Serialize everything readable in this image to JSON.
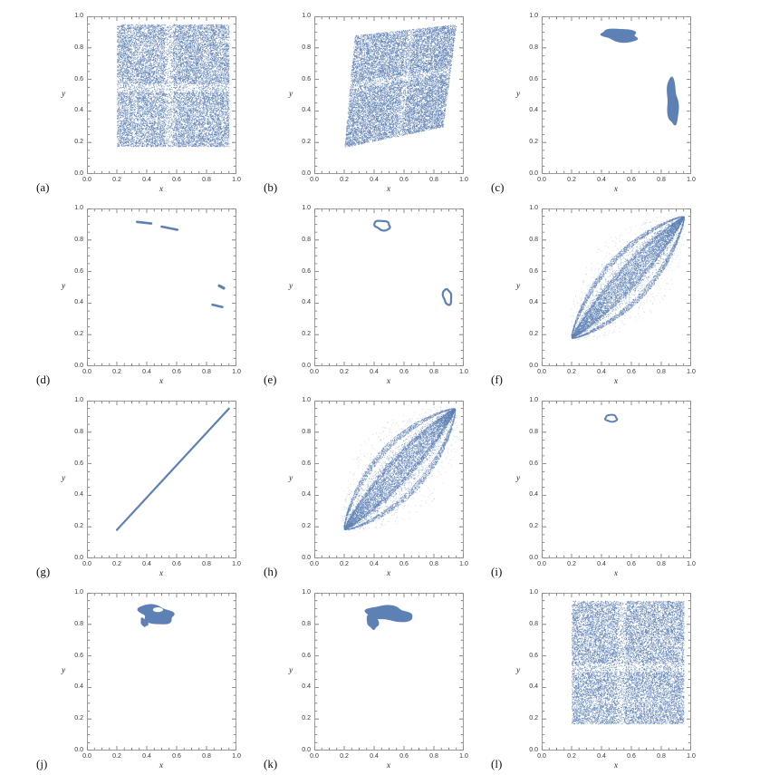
{
  "figure": {
    "axis": {
      "tick_values": [
        0,
        0.2,
        0.4,
        0.6,
        0.8,
        1.0
      ],
      "tick_labels": [
        "0.0",
        "0.2",
        "0.4",
        "0.6",
        "0.8",
        "1.0"
      ],
      "xlabel": "x",
      "ylabel": "y",
      "xlim": [
        0,
        1
      ],
      "ylim": [
        0,
        1
      ]
    },
    "point_color": "#5e81b5",
    "frame_color": "#9b9b9b",
    "tick_color": "#6e6e6e"
  },
  "chart_data": [
    {
      "label": "(a)",
      "type": "scatter",
      "shapes": [
        {
          "kind": "uniform_rect",
          "x": [
            0.2,
            0.95
          ],
          "y": [
            0.175,
            0.95
          ],
          "n": 16000,
          "bands_x": [
            [
              0.52,
              0.575,
              0.45
            ],
            [
              0.3,
              0.33,
              0.75
            ]
          ],
          "bands_y": [
            [
              0.52,
              0.575,
              0.45
            ],
            [
              0.33,
              0.36,
              0.8
            ]
          ]
        }
      ]
    },
    {
      "label": "(b)",
      "type": "scatter",
      "shapes": [
        {
          "kind": "quad",
          "corners": [
            [
              0.2,
              0.17
            ],
            [
              0.86,
              0.3
            ],
            [
              0.95,
              0.95
            ],
            [
              0.27,
              0.88
            ]
          ],
          "n": 15000,
          "bands_u": [
            [
              0.52,
              0.58,
              0.5
            ]
          ],
          "bands_v": [
            [
              0.52,
              0.58,
              0.5
            ]
          ]
        }
      ]
    },
    {
      "label": "(c)",
      "type": "scatter",
      "shapes": [
        {
          "kind": "blob",
          "cx": 0.525,
          "cy": 0.88,
          "rx": 0.135,
          "ry": 0.038,
          "rot": -0.08,
          "irr": 0.3,
          "seed": 31,
          "fill": true
        },
        {
          "kind": "blob",
          "cx": 0.875,
          "cy": 0.455,
          "rx": 0.042,
          "ry": 0.135,
          "rot": 0.06,
          "irr": 0.3,
          "seed": 32,
          "fill": true
        }
      ]
    },
    {
      "label": "(d)",
      "type": "scatter",
      "shapes": [
        {
          "kind": "segments",
          "segs": [
            {
              "pts": [
                [
                  0.335,
                  0.915
                ],
                [
                  0.43,
                  0.905
                ]
              ],
              "w": 2.6
            },
            {
              "pts": [
                [
                  0.5,
                  0.885
                ],
                [
                  0.605,
                  0.865
                ]
              ],
              "w": 2.6
            },
            {
              "pts": [
                [
                  0.885,
                  0.51
                ],
                [
                  0.915,
                  0.495
                ]
              ],
              "w": 3.2
            },
            {
              "pts": [
                [
                  0.84,
                  0.39
                ],
                [
                  0.905,
                  0.375
                ]
              ],
              "w": 2.6
            }
          ]
        }
      ]
    },
    {
      "label": "(e)",
      "type": "scatter",
      "shapes": [
        {
          "kind": "blob",
          "cx": 0.455,
          "cy": 0.893,
          "rx": 0.055,
          "ry": 0.028,
          "rot": -0.1,
          "irr": 0.22,
          "seed": 51,
          "fill": false,
          "w": 2.2
        },
        {
          "kind": "blob",
          "cx": 0.89,
          "cy": 0.44,
          "rx": 0.026,
          "ry": 0.05,
          "rot": 0.1,
          "irr": 0.22,
          "seed": 52,
          "fill": false,
          "w": 2.2
        }
      ]
    },
    {
      "label": "(f)",
      "type": "scatter",
      "shapes": [
        {
          "kind": "lens",
          "p0": [
            0.2,
            0.18
          ],
          "p1": [
            0.95,
            0.95
          ],
          "width": 0.16,
          "n": 10000,
          "edge": 0.28,
          "mid": 0.18,
          "halo": 700
        }
      ]
    },
    {
      "label": "(g)",
      "type": "scatter",
      "shapes": [
        {
          "kind": "line",
          "pts": [
            [
              0.2,
              0.18
            ],
            [
              0.95,
              0.95
            ]
          ],
          "w": 2.2
        }
      ]
    },
    {
      "label": "(h)",
      "type": "scatter",
      "shapes": [
        {
          "kind": "lens",
          "p0": [
            0.2,
            0.185
          ],
          "p1": [
            0.94,
            0.95
          ],
          "width": 0.175,
          "n": 10000,
          "edge": 0.26,
          "mid": 0.2,
          "halo": 800
        }
      ]
    },
    {
      "label": "(i)",
      "type": "scatter",
      "shapes": [
        {
          "kind": "blob",
          "cx": 0.465,
          "cy": 0.888,
          "rx": 0.042,
          "ry": 0.02,
          "rot": -0.08,
          "irr": 0.2,
          "seed": 91,
          "fill": false,
          "w": 2.0
        }
      ]
    },
    {
      "label": "(j)",
      "type": "scatter",
      "shapes": [
        {
          "kind": "blob",
          "cx": 0.465,
          "cy": 0.863,
          "rx": 0.125,
          "ry": 0.055,
          "rot": -0.12,
          "irr": 0.32,
          "seed": 101,
          "fill": true,
          "hole": {
            "cx": 0.475,
            "cy": 0.893,
            "rx": 0.034,
            "ry": 0.015
          }
        },
        {
          "kind": "blob",
          "cx": 0.383,
          "cy": 0.812,
          "rx": 0.022,
          "ry": 0.03,
          "rot": 0.3,
          "irr": 0.3,
          "seed": 102,
          "fill": true
        }
      ]
    },
    {
      "label": "(k)",
      "type": "scatter",
      "shapes": [
        {
          "kind": "blob",
          "cx": 0.5,
          "cy": 0.868,
          "rx": 0.155,
          "ry": 0.048,
          "rot": -0.04,
          "irr": 0.3,
          "seed": 111,
          "fill": true
        },
        {
          "kind": "blob",
          "cx": 0.39,
          "cy": 0.815,
          "rx": 0.035,
          "ry": 0.05,
          "rot": 0.25,
          "irr": 0.3,
          "seed": 112,
          "fill": true
        }
      ]
    },
    {
      "label": "(l)",
      "type": "scatter",
      "shapes": [
        {
          "kind": "uniform_rect",
          "x": [
            0.2,
            0.95
          ],
          "y": [
            0.17,
            0.95
          ],
          "n": 15000,
          "bands_x": [
            [
              0.5,
              0.555,
              0.5
            ]
          ],
          "bands_y": [
            [
              0.5,
              0.555,
              0.5
            ],
            [
              0.3,
              0.33,
              0.8
            ]
          ]
        }
      ]
    }
  ]
}
